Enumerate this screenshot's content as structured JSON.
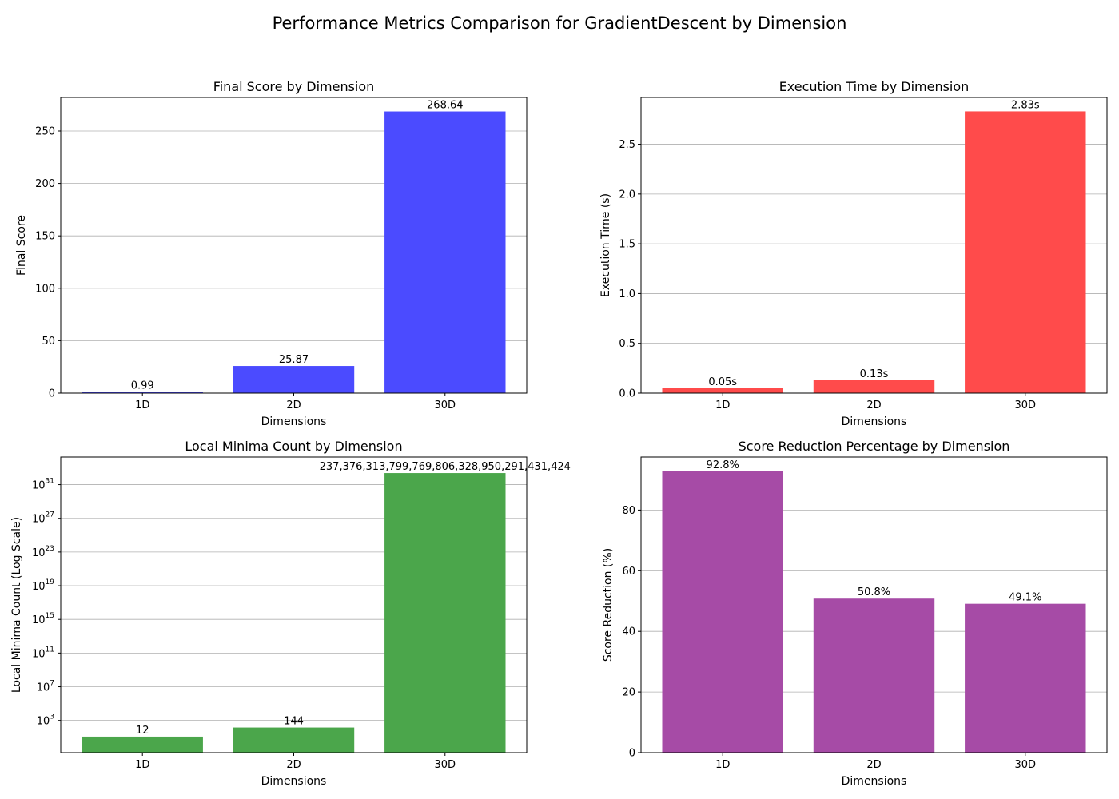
{
  "figure": {
    "title": "Performance Metrics Comparison for GradientDescent by Dimension"
  },
  "chart_data": [
    {
      "type": "bar",
      "title": "Final Score by Dimension",
      "xlabel": "Dimensions",
      "ylabel": "Final Score",
      "categories": [
        "1D",
        "2D",
        "30D"
      ],
      "values": [
        0.99,
        25.87,
        268.64
      ],
      "data_labels": [
        "0.99",
        "25.87",
        "268.64"
      ],
      "ylim": [
        0,
        282
      ],
      "yticks": [
        0,
        50,
        100,
        150,
        200,
        250
      ],
      "ytick_labels": [
        "0",
        "50",
        "100",
        "150",
        "200",
        "250"
      ],
      "log_scale": false,
      "color": "#4b4bff",
      "grid": "y"
    },
    {
      "type": "bar",
      "title": "Execution Time by Dimension",
      "xlabel": "Dimensions",
      "ylabel": "Execution Time (s)",
      "categories": [
        "1D",
        "2D",
        "30D"
      ],
      "values": [
        0.05,
        0.13,
        2.83
      ],
      "data_labels": [
        "0.05s",
        "0.13s",
        "2.83s"
      ],
      "ylim": [
        0,
        2.97
      ],
      "yticks": [
        0,
        0.5,
        1.0,
        1.5,
        2.0,
        2.5
      ],
      "ytick_labels": [
        "0.0",
        "0.5",
        "1.0",
        "1.5",
        "2.0",
        "2.5"
      ],
      "log_scale": false,
      "color": "#ff4b4b",
      "grid": "y"
    },
    {
      "type": "bar",
      "title": "Local Minima Count by Dimension",
      "xlabel": "Dimensions",
      "ylabel": "Local Minima Count (Log Scale)",
      "categories": [
        "1D",
        "2D",
        "30D"
      ],
      "values": [
        12,
        144,
        2.373763137997698e+32
      ],
      "data_labels": [
        "12",
        "144",
        "237,376,313,799,769,806,328,950,291,431,424"
      ],
      "ylim": [
        0.15,
        1.9e+34
      ],
      "log_scale": true,
      "yticks": [
        1000.0,
        10000000.0,
        100000000000.0,
        1000000000000000.0,
        1e+19,
        1e+23,
        1e+27,
        1e+31
      ],
      "ytick_base": "10",
      "ytick_exponents": [
        "3",
        "7",
        "11",
        "15",
        "19",
        "23",
        "27",
        "31"
      ],
      "color": "#4ba64b",
      "grid": "y"
    },
    {
      "type": "bar",
      "title": "Score Reduction Percentage by Dimension",
      "xlabel": "Dimensions",
      "ylabel": "Score Reduction (%)",
      "categories": [
        "1D",
        "2D",
        "30D"
      ],
      "values": [
        92.8,
        50.8,
        49.1
      ],
      "data_labels": [
        "92.8%",
        "50.8%",
        "49.1%"
      ],
      "ylim": [
        0,
        97.5
      ],
      "yticks": [
        0,
        20,
        40,
        60,
        80
      ],
      "ytick_labels": [
        "0",
        "20",
        "40",
        "60",
        "80"
      ],
      "log_scale": false,
      "color": "#a64ba6",
      "grid": "y"
    }
  ]
}
